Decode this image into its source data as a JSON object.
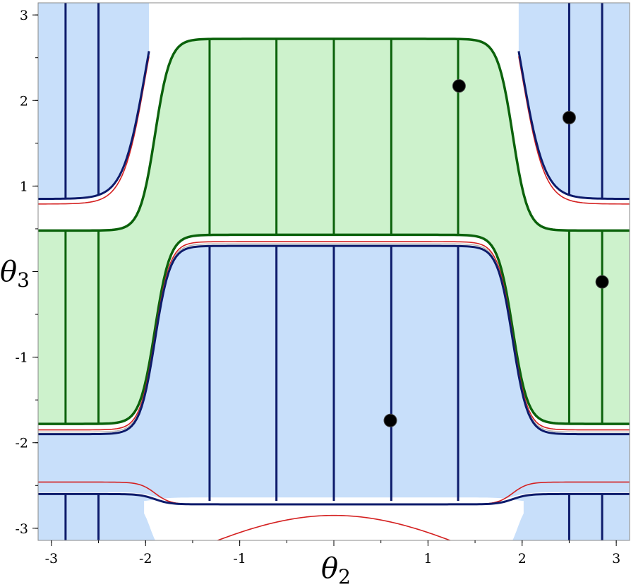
{
  "chart_data": {
    "type": "region-plot",
    "title": "",
    "xlabel": "θ",
    "xlabel_sub": "2",
    "ylabel": "θ",
    "ylabel_sub": "3",
    "xlim": [
      -3.14159,
      3.14159
    ],
    "ylim": [
      -3.14159,
      3.14159
    ],
    "xticks": [
      -3,
      -2,
      -1,
      0,
      1,
      2,
      3
    ],
    "yticks": [
      -3,
      -2,
      -1,
      0,
      1,
      2,
      3
    ],
    "xtick_labels": [
      "-3",
      "-2",
      "-1",
      "",
      "1",
      "2",
      "3"
    ],
    "ytick_labels": [
      "-3",
      "-2",
      "-1",
      "",
      "1",
      "2",
      "3"
    ],
    "grid": false,
    "colors": {
      "blue_fill": "#c8dffa",
      "blue_line": "#0d1b6b",
      "green_fill": "#cdf2cc",
      "green_line": "#0b620b",
      "red_curve": "#d42020",
      "gray_curve": "#b4b4b4",
      "points": "#000000"
    },
    "boundary_model": {
      "flat_center": 2.3,
      "flat_width": 1.8,
      "sigmoid_center": 1.9,
      "sigmoid_scale": 0.08
    },
    "regions": [
      {
        "name": "blue-top-left",
        "color": "blue",
        "x_range": [
          -3.1416,
          -2.0
        ],
        "y_from": 0.85,
        "y_to": 3.1416,
        "side": "left-top"
      },
      {
        "name": "blue-top-right",
        "color": "blue",
        "x_range": [
          2.0,
          3.1416
        ],
        "y_from": 0.85,
        "y_to": 3.1416,
        "side": "right-top"
      },
      {
        "name": "green-upper",
        "color": "green",
        "x_range": [
          -3.1416,
          3.1416
        ],
        "y_lower_flat": 0.43,
        "y_upper_peak": 2.72,
        "y_edge": 0.48
      },
      {
        "name": "green-lower-sides",
        "color": "green",
        "y_edge_low": -1.78,
        "y_upper": 0.48
      },
      {
        "name": "blue-center",
        "color": "blue",
        "y_top_peak": 0.3,
        "y_bottom": -2.6
      },
      {
        "name": "blue-bottom",
        "color": "blue",
        "y_top": -2.7,
        "x_range": [
          -2.05,
          2.05
        ]
      }
    ],
    "vertical_lines": {
      "blue_center": [
        -1.32,
        -0.61,
        0.0,
        0.61,
        1.32
      ],
      "blue_sides": [
        -2.85,
        -2.5,
        2.5,
        2.85
      ],
      "green_center": [
        -1.32,
        -0.61,
        0.0,
        0.61,
        1.32
      ],
      "green_sides": [
        -2.85,
        -2.5,
        2.5,
        2.85
      ]
    },
    "points": [
      {
        "x": 1.33,
        "y": 2.17
      },
      {
        "x": 2.5,
        "y": 1.8
      },
      {
        "x": 2.85,
        "y": -0.12
      },
      {
        "x": 0.6,
        "y": -1.74
      }
    ]
  }
}
